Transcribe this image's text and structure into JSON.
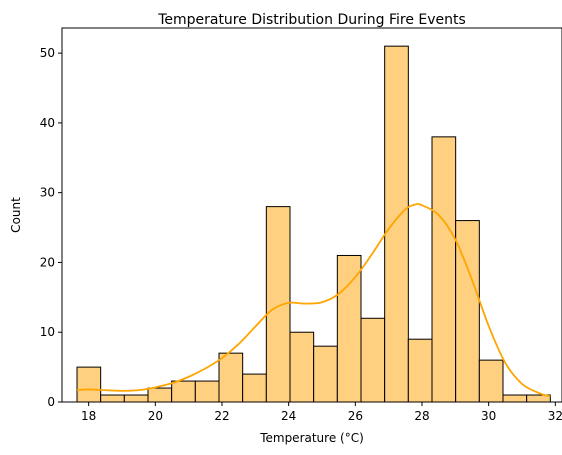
{
  "chart_data": {
    "type": "bar",
    "subtype": "histogram",
    "title": "Temperature Distribution During Fire Events",
    "xlabel": "Temperature (°C)",
    "ylabel": "Count",
    "xlim": [
      17.2,
      32.2
    ],
    "ylim": [
      0,
      53.6
    ],
    "xticks": [
      18,
      20,
      22,
      24,
      26,
      28,
      30,
      32
    ],
    "yticks": [
      0,
      10,
      20,
      30,
      40,
      50
    ],
    "bin_start": 17.65,
    "bin_width": 0.71,
    "values": [
      5,
      1,
      1,
      2,
      3,
      3,
      7,
      4,
      28,
      10,
      8,
      21,
      12,
      51,
      9,
      38,
      26,
      6,
      1,
      1
    ],
    "kde": {
      "x": [
        17.65,
        18.0,
        18.5,
        19.0,
        19.5,
        20.0,
        20.5,
        21.0,
        21.5,
        22.0,
        22.5,
        23.0,
        23.5,
        24.0,
        24.5,
        25.0,
        25.5,
        26.0,
        26.5,
        27.0,
        27.5,
        27.8,
        28.0,
        28.5,
        29.0,
        29.5,
        30.0,
        30.5,
        31.0,
        31.5,
        31.85
      ],
      "y": [
        1.7,
        1.8,
        1.7,
        1.6,
        1.7,
        2.1,
        2.7,
        3.6,
        4.8,
        6.3,
        8.3,
        10.8,
        13.2,
        14.2,
        14.1,
        14.3,
        15.5,
        17.9,
        21.2,
        24.8,
        27.6,
        28.3,
        28.2,
        26.8,
        23.3,
        17.5,
        10.9,
        5.6,
        2.6,
        1.3,
        0.8
      ]
    },
    "bar_color": "#ffd080",
    "edge_color": "#000000",
    "kde_color": "#ffa500"
  }
}
